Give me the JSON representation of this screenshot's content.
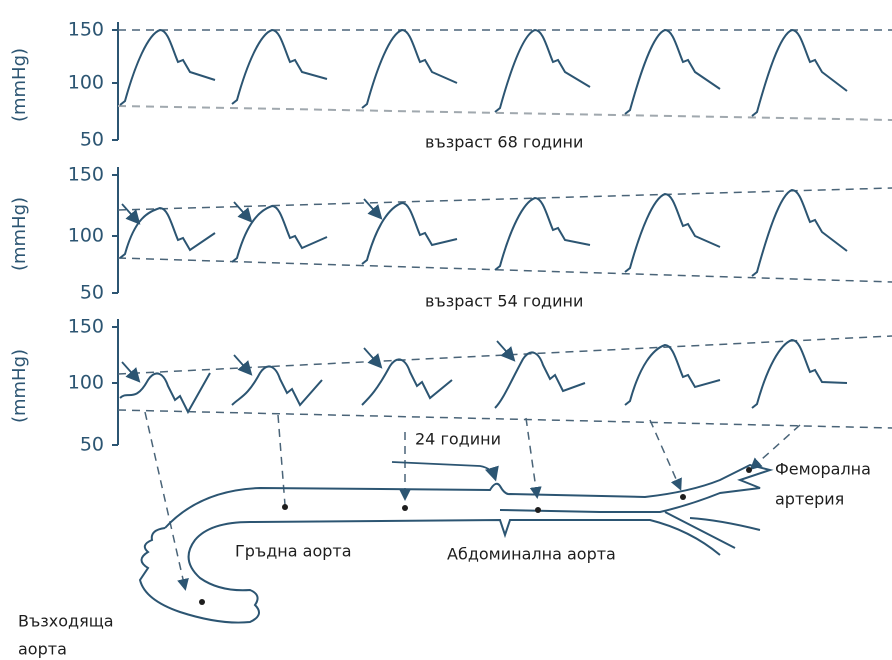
{
  "panels": [
    {
      "y_axis_label": "(mmHg)",
      "ticks": [
        "150",
        "100",
        "50"
      ],
      "caption": "възраст 68 години"
    },
    {
      "y_axis_label": "(mmHg)",
      "ticks": [
        "150",
        "100",
        "50"
      ],
      "caption": "възраст 54 години"
    },
    {
      "y_axis_label": "(mmHg)",
      "ticks": [
        "150",
        "100",
        "50"
      ],
      "caption": "24 години"
    }
  ],
  "labels": {
    "thoracic": "Гръдна аорта",
    "abdominal": "Абдоминална аорта",
    "femoral": [
      "Феморална",
      "артерия"
    ],
    "ascending": [
      "Възходяща",
      "аорта"
    ]
  }
}
